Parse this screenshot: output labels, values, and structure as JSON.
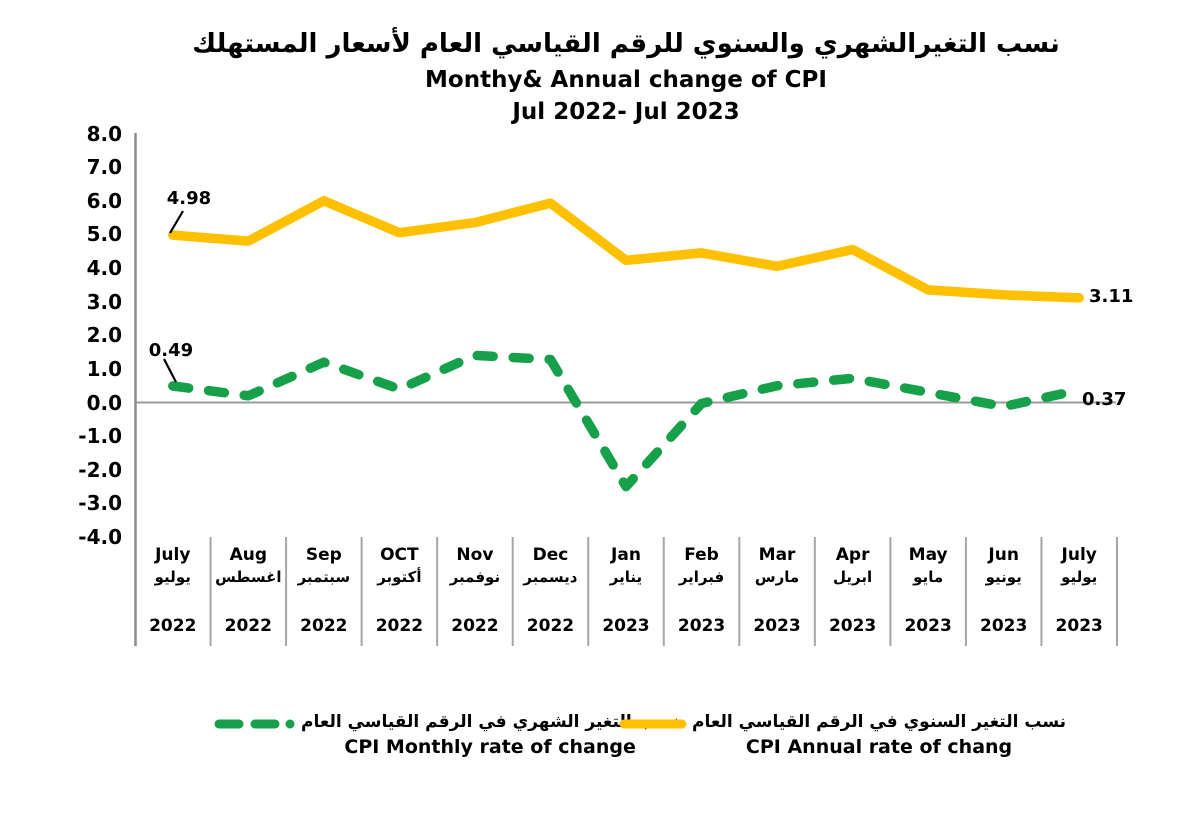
{
  "title": {
    "arabic": "نسب التغيرالشهري والسنوي للرقم القياسي العام لأسعار المستهلك",
    "english": "Monthy& Annual change of CPI",
    "period": "Jul 2022- Jul 2023"
  },
  "chart_data": {
    "type": "line",
    "title": "Monthy& Annual change of CPI Jul 2022- Jul 2023",
    "ylim": [
      -4.0,
      8.0
    ],
    "y_step": 1.0,
    "grid": "zero-line-only",
    "legend_position": "bottom",
    "categories": [
      {
        "en": "July",
        "ar": "يوليو",
        "year": "2022"
      },
      {
        "en": "Aug",
        "ar": "اغسطس",
        "year": "2022"
      },
      {
        "en": "Sep",
        "ar": "سبتمبر",
        "year": "2022"
      },
      {
        "en": "OCT",
        "ar": "أكتوبر",
        "year": "2022"
      },
      {
        "en": "Nov",
        "ar": "نوفمبر",
        "year": "2022"
      },
      {
        "en": "Dec",
        "ar": "ديسمبر",
        "year": "2022"
      },
      {
        "en": "Jan",
        "ar": "يناير",
        "year": "2023"
      },
      {
        "en": "Feb",
        "ar": "فبراير",
        "year": "2023"
      },
      {
        "en": "Mar",
        "ar": "مارس",
        "year": "2023"
      },
      {
        "en": "Apr",
        "ar": "ابريل",
        "year": "2023"
      },
      {
        "en": "May",
        "ar": "مايو",
        "year": "2023"
      },
      {
        "en": "Jun",
        "ar": "يونيو",
        "year": "2023"
      },
      {
        "en": "July",
        "ar": "يوليو",
        "year": "2023"
      }
    ],
    "series": [
      {
        "key": "annual",
        "name_ar": "نسب التغير السنوي في الرقم القياسي العام",
        "name_en": "CPI Annual rate of chang",
        "color": "#FFC000",
        "style": "solid",
        "values": [
          4.98,
          4.8,
          6.0,
          5.05,
          5.35,
          5.93,
          4.23,
          4.45,
          4.05,
          4.55,
          3.35,
          3.2,
          3.11
        ]
      },
      {
        "key": "monthly",
        "name_ar": "نسب التغير الشهري في الرقم القياسي العام",
        "name_en": "CPI Monthly rate of change",
        "color": "#16A04A",
        "style": "dashed",
        "values": [
          0.49,
          0.2,
          1.2,
          0.4,
          1.4,
          1.28,
          -2.5,
          -0.03,
          0.5,
          0.72,
          0.3,
          -0.12,
          0.37
        ]
      }
    ],
    "point_labels": {
      "annual_start": "4.98",
      "annual_end": "3.11",
      "monthly_start": "0.49",
      "monthly_end": "0.37"
    }
  },
  "colors": {
    "annual_line": "#FFC000",
    "monthly_line": "#16A04A",
    "axis_gray": "#8c8c8c",
    "separator_gray": "#a6a6a6",
    "zero_line_gray": "#9b9b9b"
  }
}
